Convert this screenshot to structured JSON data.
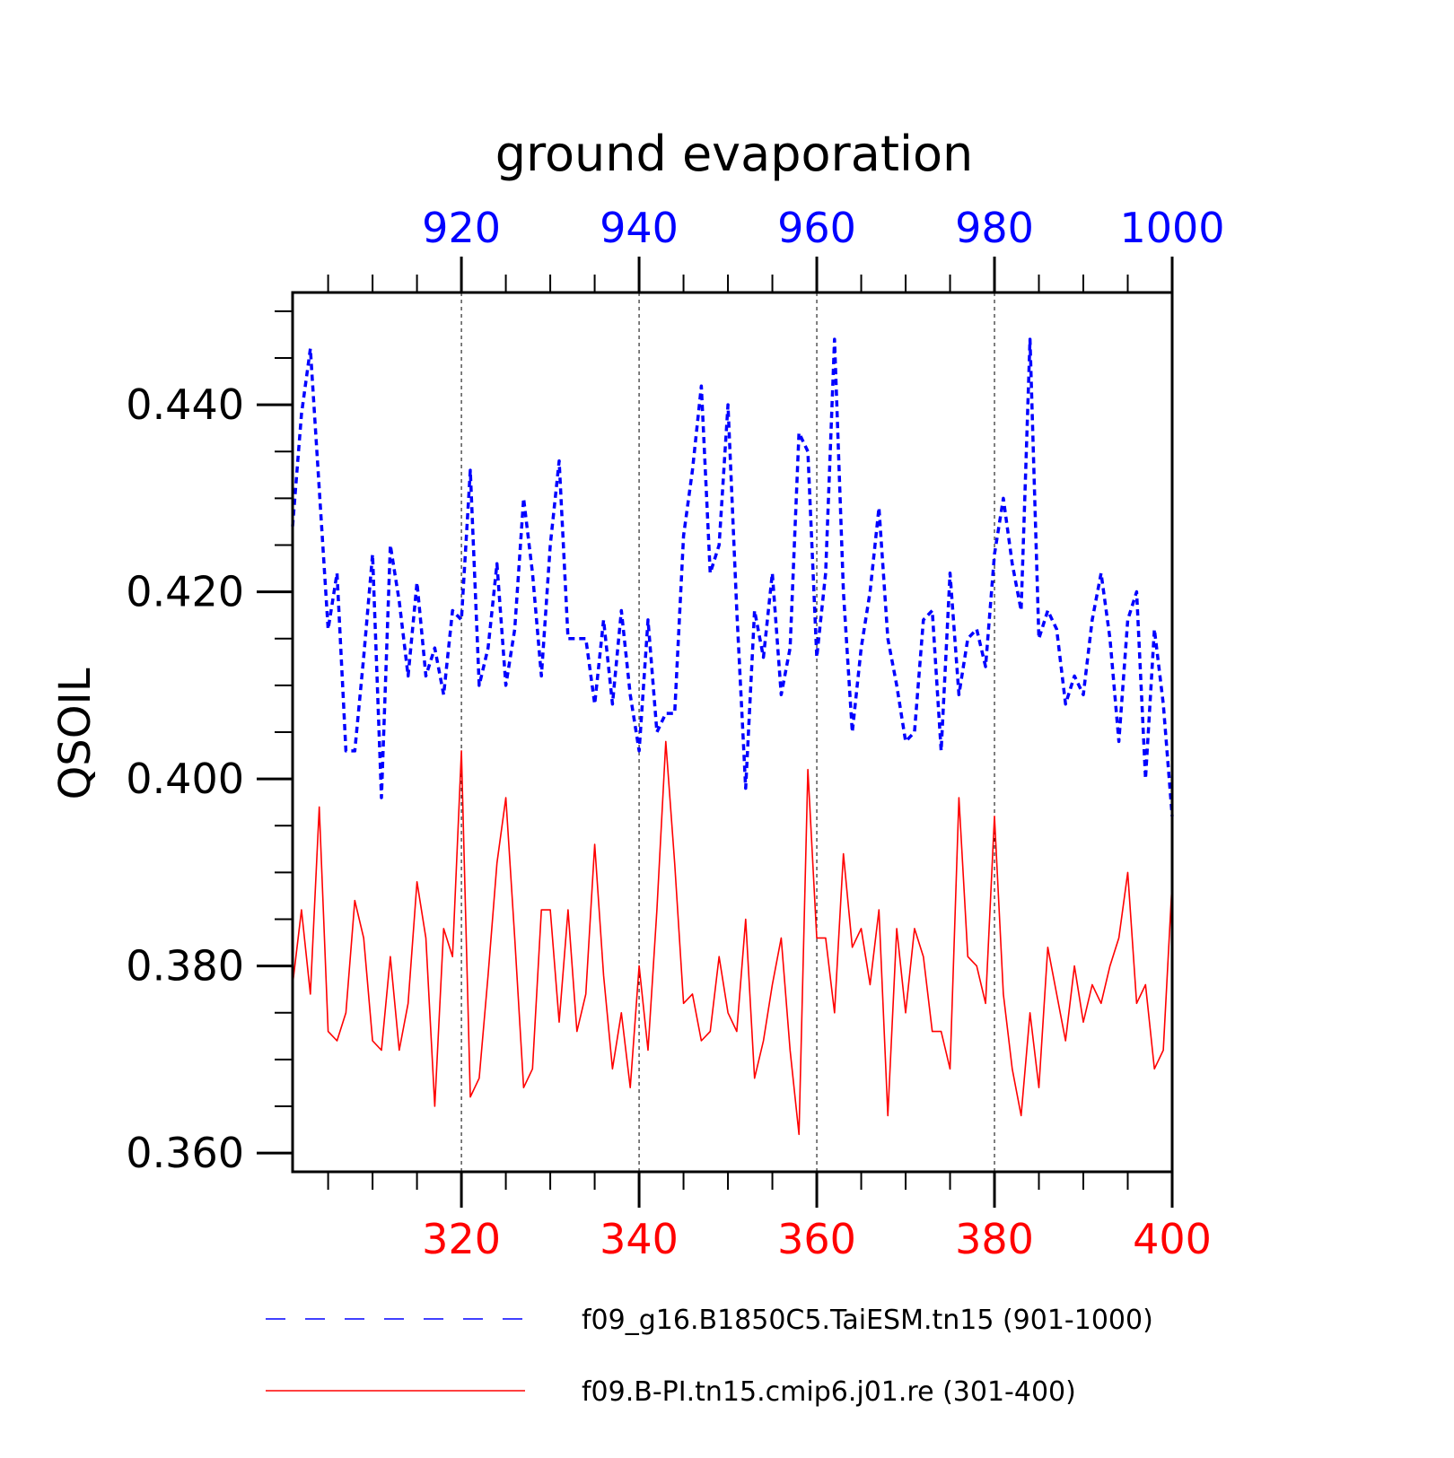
{
  "chart_data": {
    "type": "line",
    "title": "ground evaporation",
    "ylabel": "QSOIL",
    "ylim": [
      0.358,
      0.452
    ],
    "yticks": [
      0.36,
      0.38,
      0.4,
      0.42,
      0.44
    ],
    "ytick_labels": [
      "0.360",
      "0.380",
      "0.400",
      "0.420",
      "0.440"
    ],
    "x_bottom": {
      "range": [
        301,
        400
      ],
      "ticks": [
        320,
        340,
        360,
        380,
        400
      ],
      "color": "#ff0000"
    },
    "x_top": {
      "range": [
        901,
        1000
      ],
      "ticks": [
        920,
        940,
        960,
        980,
        1000
      ],
      "color": "#0000ff"
    },
    "grid_vertical_dashed": true,
    "legend_position": "bottom",
    "series": [
      {
        "name": "f09_g16.B1850C5.TaiESM.tn15 (901-1000)",
        "axis": "top",
        "color": "#0000ff",
        "style": "dashed",
        "x_start": 901,
        "values": [
          0.427,
          0.439,
          0.446,
          0.431,
          0.416,
          0.422,
          0.403,
          0.403,
          0.413,
          0.424,
          0.398,
          0.425,
          0.419,
          0.411,
          0.421,
          0.411,
          0.414,
          0.409,
          0.418,
          0.417,
          0.433,
          0.41,
          0.414,
          0.423,
          0.41,
          0.416,
          0.43,
          0.422,
          0.411,
          0.425,
          0.434,
          0.415,
          0.415,
          0.415,
          0.408,
          0.417,
          0.408,
          0.418,
          0.409,
          0.403,
          0.417,
          0.405,
          0.407,
          0.407,
          0.426,
          0.433,
          0.442,
          0.422,
          0.425,
          0.44,
          0.418,
          0.399,
          0.418,
          0.413,
          0.422,
          0.409,
          0.414,
          0.437,
          0.435,
          0.413,
          0.422,
          0.447,
          0.42,
          0.405,
          0.414,
          0.42,
          0.429,
          0.415,
          0.41,
          0.404,
          0.405,
          0.417,
          0.418,
          0.403,
          0.422,
          0.409,
          0.415,
          0.416,
          0.412,
          0.424,
          0.43,
          0.423,
          0.418,
          0.447,
          0.415,
          0.418,
          0.416,
          0.408,
          0.411,
          0.409,
          0.417,
          0.422,
          0.415,
          0.404,
          0.417,
          0.42,
          0.4,
          0.416,
          0.408,
          0.396
        ]
      },
      {
        "name": "f09.B-PI.tn15.cmip6.j01.re (301-400)",
        "axis": "bottom",
        "color": "#ff0000",
        "style": "solid",
        "x_start": 301,
        "values": [
          0.378,
          0.386,
          0.377,
          0.397,
          0.373,
          0.372,
          0.375,
          0.387,
          0.383,
          0.372,
          0.371,
          0.381,
          0.371,
          0.376,
          0.389,
          0.383,
          0.365,
          0.384,
          0.381,
          0.403,
          0.366,
          0.368,
          0.379,
          0.391,
          0.398,
          0.383,
          0.367,
          0.369,
          0.386,
          0.386,
          0.374,
          0.386,
          0.373,
          0.377,
          0.393,
          0.379,
          0.369,
          0.375,
          0.367,
          0.38,
          0.371,
          0.386,
          0.404,
          0.391,
          0.376,
          0.377,
          0.372,
          0.373,
          0.381,
          0.375,
          0.373,
          0.385,
          0.368,
          0.372,
          0.378,
          0.383,
          0.371,
          0.362,
          0.401,
          0.383,
          0.383,
          0.375,
          0.392,
          0.382,
          0.384,
          0.378,
          0.386,
          0.364,
          0.384,
          0.375,
          0.384,
          0.381,
          0.373,
          0.373,
          0.369,
          0.398,
          0.381,
          0.38,
          0.376,
          0.396,
          0.377,
          0.369,
          0.364,
          0.375,
          0.367,
          0.382,
          0.377,
          0.372,
          0.38,
          0.374,
          0.378,
          0.376,
          0.38,
          0.383,
          0.39,
          0.376,
          0.378,
          0.369,
          0.371,
          0.389
        ]
      }
    ]
  }
}
